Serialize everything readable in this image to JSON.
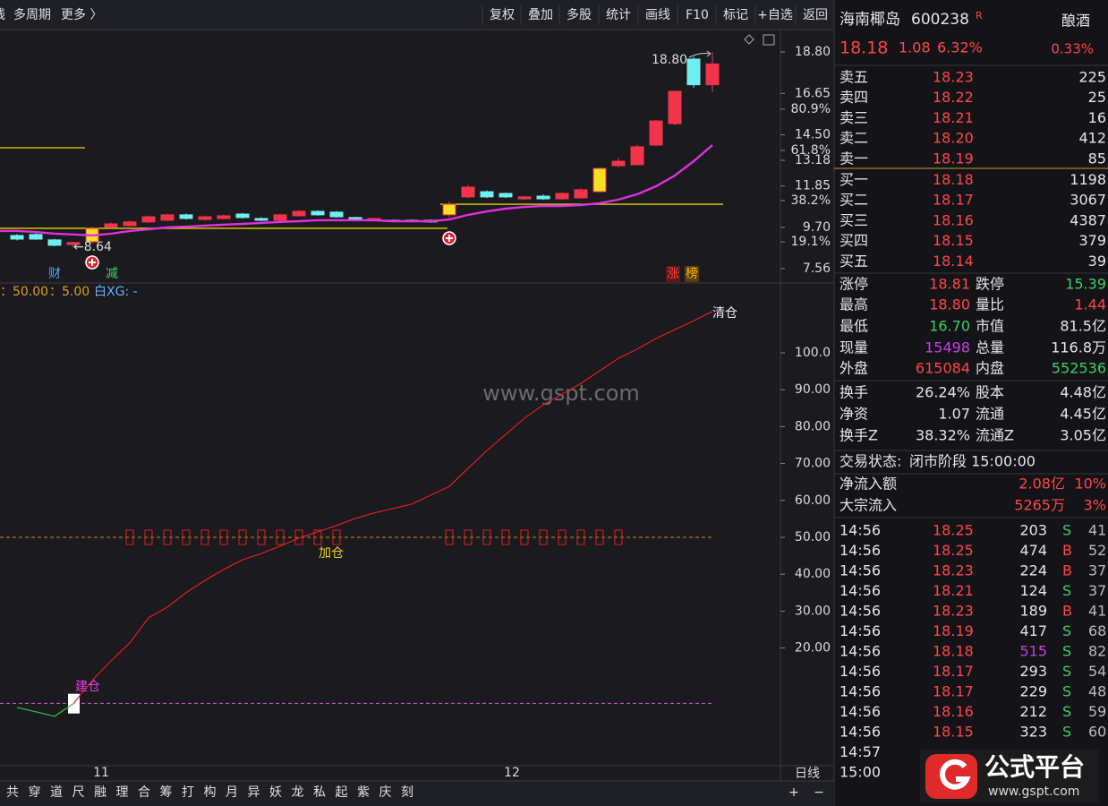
{
  "toolbar": {
    "left_cut": "线",
    "left": [
      "多周期",
      "更多 〉"
    ],
    "right": [
      "复权",
      "叠加",
      "多股",
      "统计",
      "画线",
      "F10",
      "标记",
      "+自选",
      "返回"
    ]
  },
  "stock": {
    "name": "海南椰岛",
    "code": "600238",
    "flag": "R",
    "industry": "酿酒",
    "price": "18.18",
    "change": "1.08",
    "change_pct": "6.32%",
    "ratio": "0.33%"
  },
  "order_book": [
    {
      "label": "卖五",
      "price": "18.23",
      "volume": "225"
    },
    {
      "label": "卖四",
      "price": "18.22",
      "volume": "25"
    },
    {
      "label": "卖三",
      "price": "18.21",
      "volume": "16"
    },
    {
      "label": "卖二",
      "price": "18.20",
      "volume": "412"
    },
    {
      "label": "卖一",
      "price": "18.19",
      "volume": "85"
    },
    {
      "label": "买一",
      "price": "18.18",
      "volume": "1198"
    },
    {
      "label": "买二",
      "price": "18.17",
      "volume": "3067"
    },
    {
      "label": "买三",
      "price": "18.16",
      "volume": "4387"
    },
    {
      "label": "买四",
      "price": "18.15",
      "volume": "379"
    },
    {
      "label": "买五",
      "price": "18.14",
      "volume": "39"
    }
  ],
  "stats": [
    [
      {
        "k": "涨停",
        "v": "18.81",
        "color": "#ff4646"
      },
      {
        "k": "跌停",
        "v": "15.39",
        "color": "#3ad060"
      }
    ],
    [
      {
        "k": "最高",
        "v": "18.80",
        "color": "#ff4646"
      },
      {
        "k": "量比",
        "v": "1.44",
        "color": "#ff4646"
      }
    ],
    [
      {
        "k": "最低",
        "v": "16.70",
        "color": "#3ad060"
      },
      {
        "k": "市值",
        "v": "81.5亿",
        "color": "#e6e6e6"
      }
    ],
    [
      {
        "k": "现量",
        "v": "15498",
        "color": "#c040e0"
      },
      {
        "k": "总量",
        "v": "116.8万",
        "color": "#e6e6e6"
      }
    ],
    [
      {
        "k": "外盘",
        "v": "615084",
        "color": "#ff4646"
      },
      {
        "k": "内盘",
        "v": "552536",
        "color": "#3ad060"
      }
    ],
    [
      {
        "k": "换手",
        "v": "26.24%",
        "color": "#e6e6e6"
      },
      {
        "k": "股本",
        "v": "4.48亿",
        "color": "#e6e6e6"
      }
    ],
    [
      {
        "k": "净资",
        "v": "1.07",
        "color": "#e6e6e6"
      },
      {
        "k": "流通",
        "v": "4.45亿",
        "color": "#e6e6e6"
      }
    ],
    [
      {
        "k": "换手Z",
        "v": "38.32%",
        "color": "#e6e6e6"
      },
      {
        "k": "流通Z",
        "v": "3.05亿",
        "color": "#e6e6e6"
      }
    ]
  ],
  "status": {
    "label": "交易状态:",
    "value": "闭市阶段 15:00:00"
  },
  "flow": [
    {
      "k": "净流入额",
      "v": "2.08亿",
      "p": "10%"
    },
    {
      "k": "大宗流入",
      "v": "5265万",
      "p": "3%"
    }
  ],
  "trades": [
    {
      "time": "14:56",
      "price": "18.25",
      "vol": "203",
      "dir": "S",
      "last": "41"
    },
    {
      "time": "14:56",
      "price": "18.25",
      "vol": "474",
      "dir": "B",
      "last": "52"
    },
    {
      "time": "14:56",
      "price": "18.23",
      "vol": "224",
      "dir": "B",
      "last": "37"
    },
    {
      "time": "14:56",
      "price": "18.21",
      "vol": "124",
      "dir": "S",
      "last": "37"
    },
    {
      "time": "14:56",
      "price": "18.23",
      "vol": "189",
      "dir": "B",
      "last": "41"
    },
    {
      "time": "14:56",
      "price": "18.19",
      "vol": "417",
      "dir": "S",
      "last": "68"
    },
    {
      "time": "14:56",
      "price": "18.18",
      "vol": "515",
      "dir": "S",
      "last": "82"
    },
    {
      "time": "14:56",
      "price": "18.17",
      "vol": "293",
      "dir": "S",
      "last": "54"
    },
    {
      "time": "14:56",
      "price": "18.17",
      "vol": "229",
      "dir": "S",
      "last": "48"
    },
    {
      "time": "14:56",
      "price": "18.16",
      "vol": "212",
      "dir": "S",
      "last": "59"
    },
    {
      "time": "14:56",
      "price": "18.15",
      "vol": "323",
      "dir": "S",
      "last": "60"
    },
    {
      "time": "14:57"
    },
    {
      "time": "15:00"
    }
  ],
  "watermark": {
    "logo": "公式平台",
    "url": "www.gspt.com"
  },
  "chart": {
    "ylim": [
      6.86,
      19.87
    ],
    "yticks": [
      {
        "value": 18.8,
        "label": "18.80"
      },
      16.65,
      {
        "value": 14.5,
        "label": "14.50"
      },
      13.18,
      11.85,
      {
        "value": 9.7,
        "label": "9.70"
      },
      7.56
    ],
    "pct_ticks": [
      {
        "value": 15.83,
        "label": "80.9%"
      },
      {
        "value": 13.69,
        "label": "61.8%"
      },
      {
        "value": 11.09,
        "label": "38.2%"
      },
      {
        "value": 8.95,
        "label": "19.1%"
      }
    ],
    "up_color": "#f2344a",
    "down_color": "#6ff0f0",
    "highlight_color": "#f8e020",
    "highlight": [
      4,
      23,
      31
    ],
    "candles": [
      {
        "o": 9.28,
        "h": 9.35,
        "l": 9.02,
        "c": 9.09
      },
      {
        "o": 9.33,
        "h": 9.4,
        "l": 9.05,
        "c": 9.09
      },
      {
        "o": 9.05,
        "h": 9.1,
        "l": 8.72,
        "c": 8.77
      },
      {
        "o": 8.81,
        "h": 8.95,
        "l": 8.64,
        "c": 8.91
      },
      {
        "o": 8.95,
        "h": 9.74,
        "l": 8.86,
        "c": 9.65
      },
      {
        "o": 9.7,
        "h": 9.95,
        "l": 9.65,
        "c": 9.88
      },
      {
        "o": 9.79,
        "h": 10.05,
        "l": 9.75,
        "c": 9.98
      },
      {
        "o": 9.98,
        "h": 10.3,
        "l": 9.93,
        "c": 10.25
      },
      {
        "o": 10.07,
        "h": 10.4,
        "l": 10.02,
        "c": 10.35
      },
      {
        "o": 10.35,
        "h": 10.42,
        "l": 10.1,
        "c": 10.16
      },
      {
        "o": 10.11,
        "h": 10.3,
        "l": 10.05,
        "c": 10.25
      },
      {
        "o": 10.16,
        "h": 10.36,
        "l": 10.1,
        "c": 10.3
      },
      {
        "o": 10.39,
        "h": 10.45,
        "l": 10.16,
        "c": 10.21
      },
      {
        "o": 10.16,
        "h": 10.22,
        "l": 10.02,
        "c": 10.07
      },
      {
        "o": 10.07,
        "h": 10.42,
        "l": 10.02,
        "c": 10.35
      },
      {
        "o": 10.3,
        "h": 10.6,
        "l": 10.25,
        "c": 10.53
      },
      {
        "o": 10.53,
        "h": 10.58,
        "l": 10.3,
        "c": 10.35
      },
      {
        "o": 10.49,
        "h": 10.55,
        "l": 10.2,
        "c": 10.25
      },
      {
        "o": 10.21,
        "h": 10.25,
        "l": 10.05,
        "c": 10.11
      },
      {
        "o": 10.07,
        "h": 10.2,
        "l": 10.02,
        "c": 10.16
      },
      {
        "o": 10.07,
        "h": 10.1,
        "l": 9.98,
        "c": 10.02
      },
      {
        "o": 10.07,
        "h": 10.12,
        "l": 9.97,
        "c": 10.02
      },
      {
        "o": 10.07,
        "h": 10.12,
        "l": 9.93,
        "c": 9.98
      },
      {
        "o": 10.35,
        "h": 11.04,
        "l": 10.21,
        "c": 10.9
      },
      {
        "o": 11.28,
        "h": 11.9,
        "l": 11.2,
        "c": 11.79
      },
      {
        "o": 11.55,
        "h": 11.62,
        "l": 11.22,
        "c": 11.28
      },
      {
        "o": 11.46,
        "h": 11.52,
        "l": 11.22,
        "c": 11.28
      },
      {
        "o": 11.18,
        "h": 11.32,
        "l": 11.12,
        "c": 11.28
      },
      {
        "o": 11.32,
        "h": 11.4,
        "l": 11.12,
        "c": 11.18
      },
      {
        "o": 11.18,
        "h": 11.52,
        "l": 11.12,
        "c": 11.46
      },
      {
        "o": 11.23,
        "h": 11.72,
        "l": 11.18,
        "c": 11.65
      },
      {
        "o": 11.55,
        "h": 12.8,
        "l": 11.5,
        "c": 12.76
      },
      {
        "o": 12.9,
        "h": 13.3,
        "l": 12.8,
        "c": 13.13
      },
      {
        "o": 12.95,
        "h": 14.0,
        "l": 12.9,
        "c": 13.88
      },
      {
        "o": 13.97,
        "h": 15.3,
        "l": 13.9,
        "c": 15.22
      },
      {
        "o": 15.08,
        "h": 16.8,
        "l": 15.0,
        "c": 16.76
      },
      {
        "o": 18.43,
        "h": 18.55,
        "l": 16.95,
        "c": 17.1
      },
      {
        "o": 17.1,
        "h": 18.8,
        "l": 16.7,
        "c": 18.18
      }
    ],
    "ma": {
      "color": "#e030e0",
      "values": [
        9.51,
        9.46,
        9.37,
        9.33,
        9.28,
        9.37,
        9.51,
        9.6,
        9.7,
        9.74,
        9.79,
        9.84,
        9.88,
        9.93,
        9.98,
        10.02,
        10.07,
        10.07,
        10.07,
        10.07,
        10.02,
        10.02,
        10.02,
        10.11,
        10.35,
        10.53,
        10.67,
        10.76,
        10.81,
        10.81,
        10.86,
        10.95,
        11.14,
        11.42,
        11.83,
        12.39,
        13.13,
        13.97
      ]
    },
    "levels": [
      13.83,
      9.65,
      10.9
    ],
    "level_color": "#e6d400",
    "annotations": {
      "high": "18.80",
      "low": "←8.64"
    },
    "tags": [
      "财",
      "减",
      "涨",
      "榜"
    ],
    "x_labels": [
      "11",
      "12"
    ],
    "period": "日线"
  },
  "indicator": {
    "header": [
      "：50.00",
      "：5.00",
      "白XG: -"
    ],
    "ylim": [
      -11.9,
      117.96
    ],
    "yticks": [
      {
        "value": 100,
        "label": "100.0"
      },
      {
        "value": 90,
        "label": "90.00"
      },
      {
        "value": 80,
        "label": "80.00"
      },
      {
        "value": 70,
        "label": "70.00"
      },
      {
        "value": 60,
        "label": "60.00"
      },
      {
        "value": 50,
        "label": "50.00"
      },
      {
        "value": 40,
        "label": "40.00"
      },
      {
        "value": 30,
        "label": "30.00"
      },
      {
        "value": 20,
        "label": "20.00"
      }
    ],
    "levels": [
      {
        "value": 50,
        "color": "#d08a10"
      },
      {
        "value": 5,
        "color": "#d060d0"
      }
    ],
    "series": [
      {
        "color": "#e02020",
        "values": [
          null,
          null,
          null,
          4.9,
          11.2,
          16.5,
          21.4,
          28.2,
          31.1,
          35.0,
          38.3,
          41.3,
          43.9,
          45.6,
          47.6,
          49.8,
          51.5,
          53.2,
          55.1,
          56.6,
          57.8,
          59.0,
          61.4,
          63.8,
          68.7,
          73.5,
          77.9,
          82.3,
          85.9,
          88.8,
          91.7,
          95.1,
          98.5,
          101.0,
          103.9,
          106.3,
          108.7,
          111.2
        ]
      },
      {
        "color": "#30c040",
        "values": [
          3.9,
          2.7,
          1.5,
          4.9,
          null,
          null,
          null,
          null,
          null,
          null,
          null,
          null,
          null,
          null,
          null,
          null,
          null,
          null,
          null,
          null,
          null,
          null,
          null,
          null,
          null,
          null,
          null,
          null,
          null,
          null,
          null,
          null,
          null,
          null,
          null,
          null,
          null,
          null
        ]
      }
    ],
    "labels": {
      "build": "建仓",
      "add": "加仓",
      "clear": "清仓"
    }
  },
  "bottom_bar": {
    "items": [
      "共",
      "穿",
      "道",
      "尺",
      "融",
      "理",
      "合",
      "筹",
      "打",
      "构",
      "月",
      "异",
      "妖",
      "龙",
      "私",
      "起",
      "紫",
      "庆",
      "刻"
    ],
    "plus": "+",
    "minus": "−"
  }
}
